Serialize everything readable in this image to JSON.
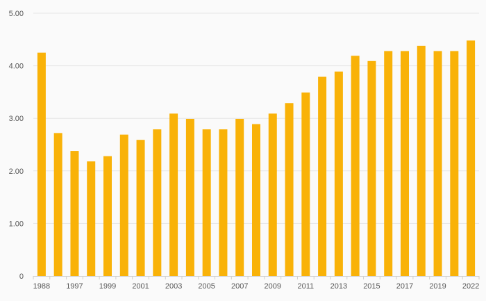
{
  "chart_data": {
    "type": "bar",
    "categories": [
      "1988",
      "",
      "1997",
      "",
      "1999",
      "",
      "2001",
      "",
      "2003",
      "",
      "2005",
      "",
      "2007",
      "",
      "2009",
      "",
      "2011",
      "",
      "2013",
      "",
      "2015",
      "",
      "2017",
      "",
      "2019",
      "",
      "2022"
    ],
    "values": [
      4.25,
      2.72,
      2.38,
      2.18,
      2.28,
      2.69,
      2.59,
      2.79,
      3.09,
      2.99,
      2.79,
      2.79,
      2.99,
      2.89,
      3.09,
      3.29,
      3.49,
      3.79,
      3.89,
      4.19,
      4.09,
      4.28,
      4.28,
      4.38,
      4.28,
      4.28,
      4.48
    ],
    "ylim": [
      0,
      5
    ],
    "yticks": [
      0,
      1,
      2,
      3,
      4,
      5
    ],
    "ytick_labels": [
      "0",
      "1.00",
      "2.00",
      "3.00",
      "4.00",
      "5.00"
    ],
    "grid": true,
    "title": "",
    "xlabel": "",
    "ylabel": "",
    "colors": {
      "bar": "#f9b208",
      "grid": "#e6e6e6",
      "axis": "#cfcfcf",
      "text": "#555555",
      "background": "#fafafa"
    }
  }
}
